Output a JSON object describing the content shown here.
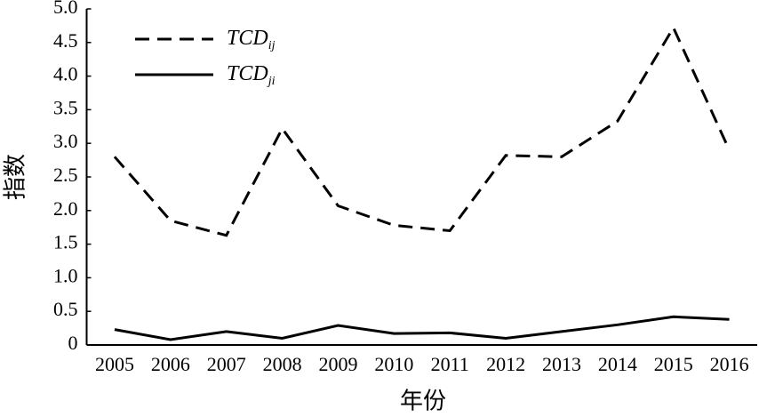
{
  "chart_data": {
    "type": "line",
    "x_label": "年份",
    "y_label": "指数",
    "categories": [
      "2005",
      "2006",
      "2007",
      "2008",
      "2009",
      "2010",
      "2011",
      "2012",
      "2013",
      "2014",
      "2015",
      "2016"
    ],
    "series": [
      {
        "name": "TCDij",
        "color": "#000000",
        "dash": true,
        "values": [
          2.8,
          1.85,
          1.63,
          3.22,
          2.07,
          1.78,
          1.7,
          2.82,
          2.8,
          3.33,
          4.72,
          2.9
        ]
      },
      {
        "name": "TCDji",
        "color": "#000000",
        "dash": false,
        "values": [
          0.23,
          0.08,
          0.2,
          0.1,
          0.29,
          0.17,
          0.18,
          0.1,
          0.2,
          0.3,
          0.42,
          0.38
        ]
      }
    ],
    "ylim": [
      0,
      5
    ],
    "yticks": [
      0,
      0.5,
      {
        "value": 1,
        "label": "1.0"
      },
      1.5,
      {
        "value": 2,
        "label": "2.0"
      },
      2.5,
      {
        "value": 3,
        "label": "3.0"
      },
      3.5,
      {
        "value": 4,
        "label": "4.0"
      },
      4.5,
      {
        "value": 5,
        "label": "5.0"
      }
    ],
    "grid": false
  }
}
